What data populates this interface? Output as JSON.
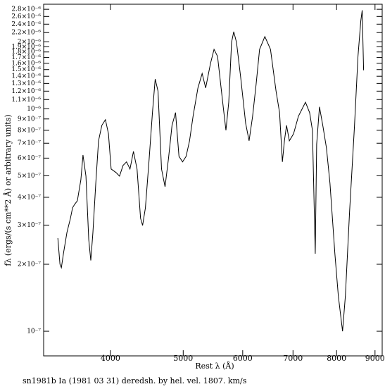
{
  "chart_data": {
    "type": "line",
    "x_label": "Rest λ (Å)",
    "y_label": "fλ (ergs/(s cm**2 Å) or arbitrary units)",
    "caption": "sn1981b Ia (1981 03 31) deredsh. by hel. vel.  1807. km/s",
    "xscale": "log",
    "yscale": "log",
    "xlim": [
      3260,
      9200
    ],
    "ylim": [
      7.75e-08,
      2.95e-06
    ],
    "xticks": [
      4000,
      5000,
      6000,
      7000,
      8000,
      9000
    ],
    "yticks": [
      {
        "value": 1e-07,
        "label": "10⁻⁷"
      },
      {
        "value": 2e-07,
        "label": "2×10⁻⁷"
      },
      {
        "value": 3e-07,
        "label": "3×10⁻⁷"
      },
      {
        "value": 4e-07,
        "label": "4×10⁻⁷"
      },
      {
        "value": 5e-07,
        "label": "5×10⁻⁷"
      },
      {
        "value": 6e-07,
        "label": "6×10⁻⁷"
      },
      {
        "value": 7e-07,
        "label": "7×10⁻⁷"
      },
      {
        "value": 8e-07,
        "label": "8×10⁻⁷"
      },
      {
        "value": 9e-07,
        "label": "9×10⁻⁷"
      },
      {
        "value": 1e-06,
        "label": "10⁻⁶"
      },
      {
        "value": 1.1e-06,
        "label": "1.1×10⁻⁶"
      },
      {
        "value": 1.2e-06,
        "label": "1.2×10⁻⁶"
      },
      {
        "value": 1.3e-06,
        "label": "1.3×10⁻⁶"
      },
      {
        "value": 1.4e-06,
        "label": "1.4×10⁻⁶"
      },
      {
        "value": 1.5e-06,
        "label": "1.5×10⁻⁶"
      },
      {
        "value": 1.6e-06,
        "label": "1.6×10⁻⁶"
      },
      {
        "value": 1.7e-06,
        "label": "1.7×10⁻⁶"
      },
      {
        "value": 1.8e-06,
        "label": "1.8×10⁻⁶"
      },
      {
        "value": 1.9e-06,
        "label": "1.9×10⁻⁶"
      },
      {
        "value": 2e-06,
        "label": "2×10⁻⁶"
      },
      {
        "value": 2.2e-06,
        "label": "2.2×10⁻⁶"
      },
      {
        "value": 2.4e-06,
        "label": "2.4×10⁻⁶"
      },
      {
        "value": 2.6e-06,
        "label": "2.6×10⁻⁶"
      },
      {
        "value": 2.8e-06,
        "label": "2.8×10⁻⁶"
      }
    ],
    "color": "#000000",
    "x": [
      3405,
      3427,
      3442,
      3464,
      3501,
      3539,
      3562,
      3585,
      3615,
      3654,
      3678,
      3711,
      3743,
      3767,
      3791,
      3825,
      3857,
      3897,
      3940,
      3976,
      4009,
      4069,
      4113,
      4158,
      4203,
      4248,
      4293,
      4340,
      4387,
      4415,
      4453,
      4501,
      4550,
      4589,
      4628,
      4679,
      4729,
      4780,
      4831,
      4884,
      4936,
      4990,
      5044,
      5098,
      5153,
      5231,
      5299,
      5356,
      5437,
      5496,
      5555,
      5651,
      5700,
      5749,
      5799,
      5837,
      5887,
      5963,
      6054,
      6119,
      6185,
      6252,
      6319,
      6421,
      6533,
      6646,
      6718,
      6776,
      6819,
      6863,
      6922,
      7012,
      7118,
      7272,
      7366,
      7429,
      7494,
      7526,
      7591,
      7673,
      7756,
      7840,
      7958,
      8044,
      8148,
      8219,
      8325,
      8451,
      8542,
      8616,
      8653,
      8690
    ],
    "values": [
      2.62e-07,
      2e-07,
      1.93e-07,
      2.23e-07,
      2.78e-07,
      3.22e-07,
      3.59e-07,
      3.72e-07,
      3.86e-07,
      4.8e-07,
      6.2e-07,
      4.98e-07,
      2.58e-07,
      2.08e-07,
      2.78e-07,
      4.63e-07,
      7.18e-07,
      8.42e-07,
      8.93e-07,
      7.72e-07,
      5.36e-07,
      5.17e-07,
      4.98e-07,
      5.56e-07,
      5.77e-07,
      5.36e-07,
      6.43e-07,
      5.36e-07,
      3.22e-07,
      2.99e-07,
      3.59e-07,
      5.77e-07,
      9.61e-07,
      1.36e-06,
      1.2e-06,
      5.36e-07,
      4.46e-07,
      5.98e-07,
      8.42e-07,
      9.61e-07,
      6.11e-07,
      5.77e-07,
      6.11e-07,
      7.18e-07,
      9.26e-07,
      1.24e-06,
      1.44e-06,
      1.24e-06,
      1.6e-06,
      1.85e-06,
      1.72e-06,
      1.03e-06,
      8e-07,
      1.07e-06,
      1.99e-06,
      2.22e-06,
      1.99e-06,
      1.38e-06,
      8.61e-07,
      7.18e-07,
      9.26e-07,
      1.29e-06,
      1.85e-06,
      2.11e-06,
      1.85e-06,
      1.2e-06,
      9.61e-07,
      5.77e-07,
      7.18e-07,
      8.42e-07,
      7.18e-07,
      7.72e-07,
      9.26e-07,
      1.07e-06,
      9.61e-07,
      8e-07,
      2.23e-07,
      6.92e-07,
      1.02e-06,
      8.31e-07,
      6.67e-07,
      4.63e-07,
      2.23e-07,
      1.44e-07,
      1e-07,
      1.44e-07,
      3.46e-07,
      8.31e-07,
      1.72e-06,
      2.48e-06,
      2.77e-06,
      1.49e-06
    ]
  }
}
